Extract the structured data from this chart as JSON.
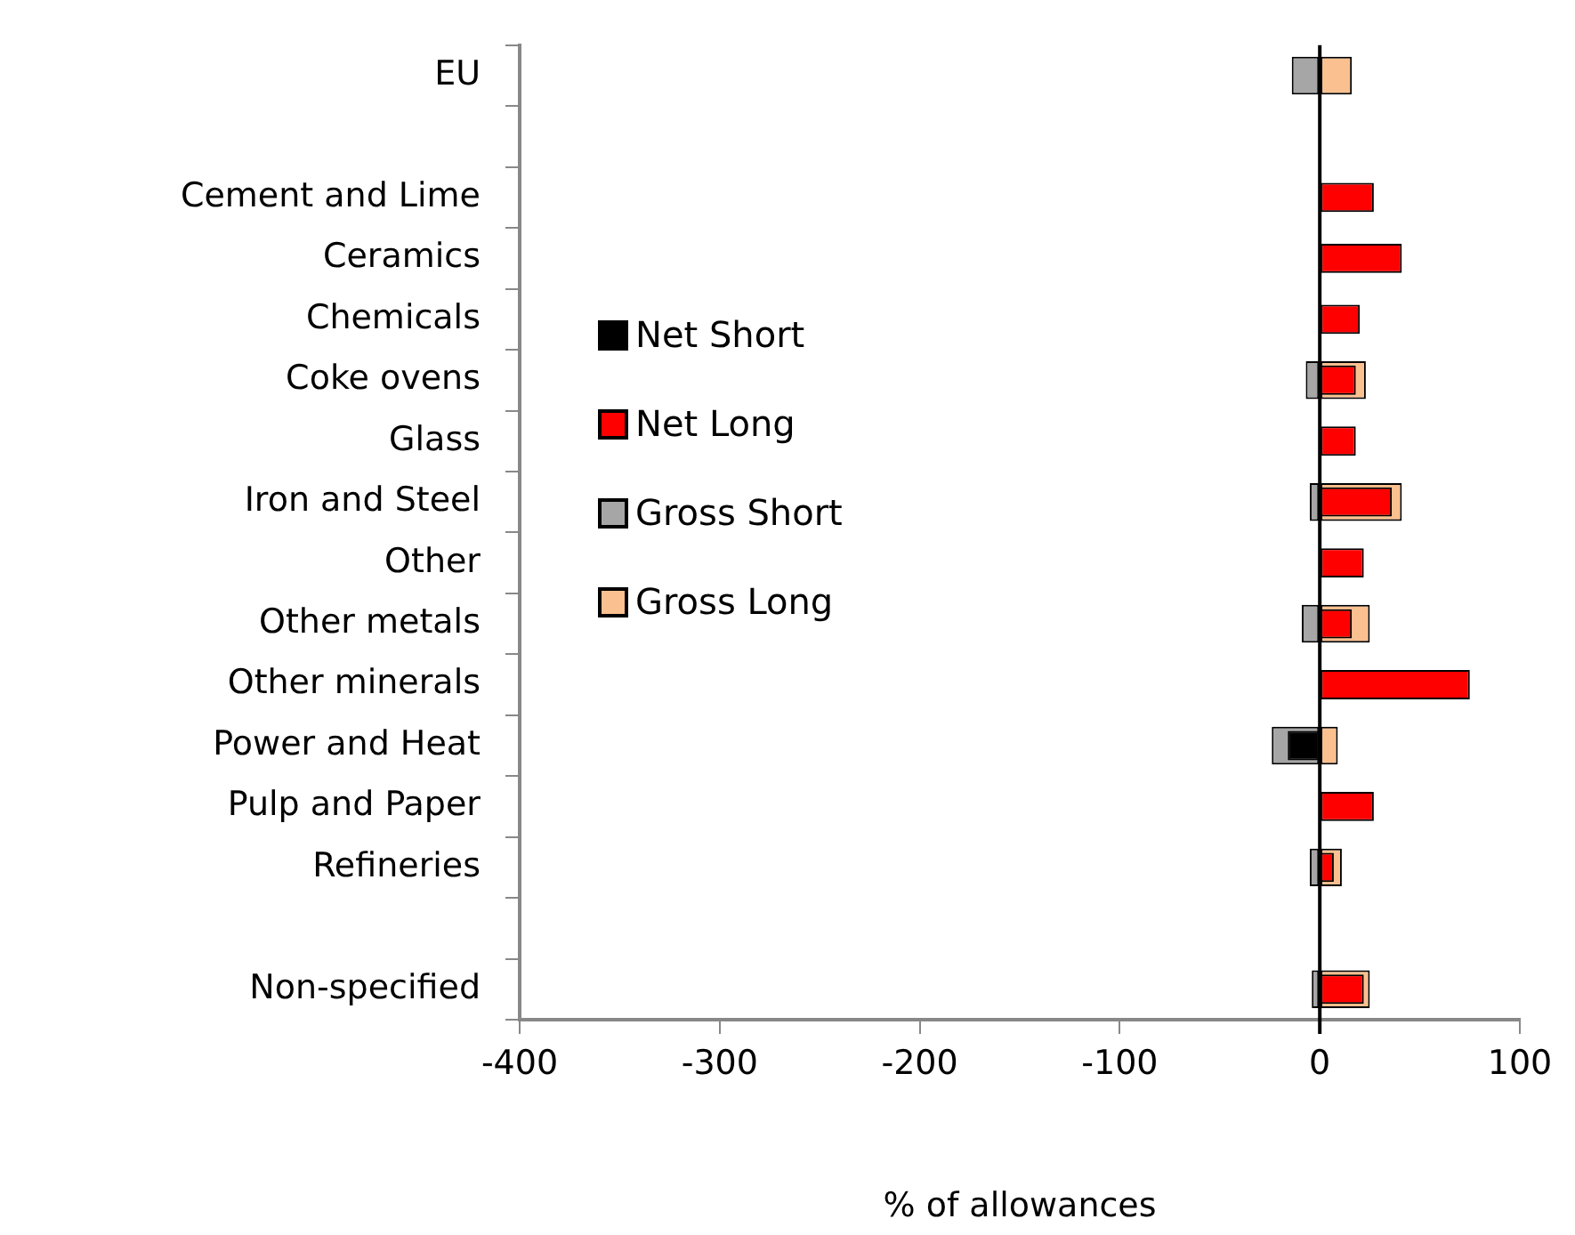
{
  "chart_data": {
    "type": "bar",
    "orientation": "horizontal",
    "xlabel": "% of allowances",
    "categories": [
      "EU",
      null,
      "Cement and Lime",
      "Ceramics",
      "Chemicals",
      "Coke ovens",
      "Glass",
      "Iron and Steel",
      "Other",
      "Other metals",
      "Other minerals",
      "Power and Heat",
      "Pulp and Paper",
      "Refineries",
      null,
      "Non-specified"
    ],
    "series": [
      {
        "name": "Net Short",
        "color": "#000000",
        "values": [
          null,
          null,
          null,
          null,
          null,
          null,
          null,
          null,
          null,
          null,
          null,
          -16,
          null,
          null,
          null,
          null
        ]
      },
      {
        "name": "Net Long",
        "color": "#ff0000",
        "values": [
          null,
          null,
          27,
          41,
          20,
          18,
          18,
          36,
          22,
          16,
          75,
          null,
          27,
          7,
          null,
          22
        ]
      },
      {
        "name": "Gross Short",
        "color": "#a6a6a6",
        "values": [
          -14,
          null,
          null,
          null,
          null,
          -7,
          null,
          -5,
          null,
          -9,
          null,
          -24,
          null,
          -5,
          null,
          -4
        ]
      },
      {
        "name": "Gross Long",
        "color": "#fac090",
        "values": [
          16,
          null,
          null,
          null,
          null,
          23,
          null,
          41,
          null,
          25,
          null,
          9,
          null,
          11,
          null,
          25
        ]
      }
    ],
    "xlim": [
      -400,
      100
    ],
    "xticks": [
      -400,
      -300,
      -200,
      -100,
      0,
      100
    ],
    "ref_lines": [
      {
        "axis": "x",
        "value": 0,
        "color": "#000000"
      }
    ],
    "legend": "center left",
    "grid": false
  }
}
